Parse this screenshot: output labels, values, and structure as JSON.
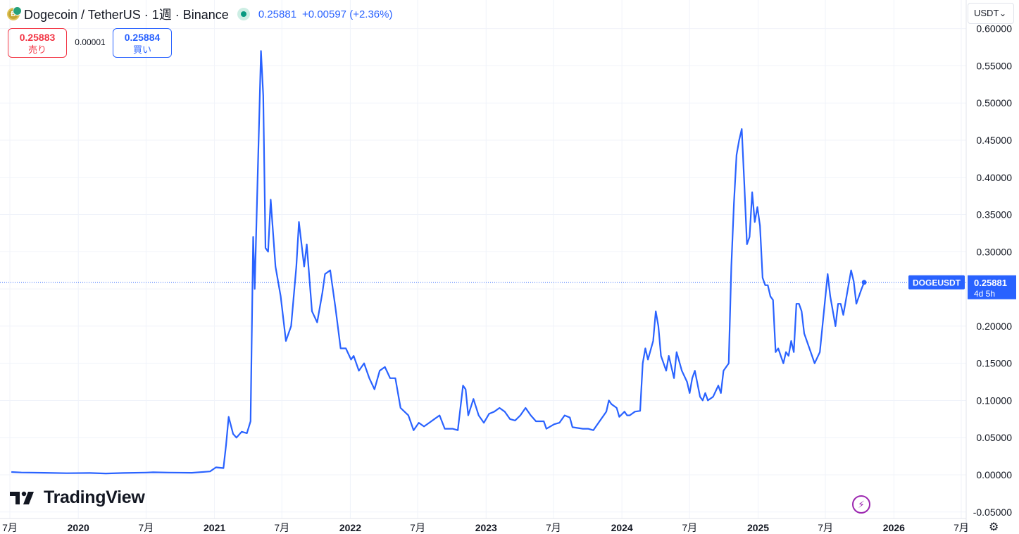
{
  "header": {
    "title": "Dogecoin / TetherUS · 1週 · Binance",
    "last_price": "0.25881",
    "change": "+0.00597 (+2.36%)"
  },
  "trade": {
    "sell_price": "0.25883",
    "sell_label": "売り",
    "spread": "0.00001",
    "buy_price": "0.25884",
    "buy_label": "買い"
  },
  "currency": "USDT",
  "logo_text": "TradingView",
  "price_label": {
    "symbol": "DOGEUSDT",
    "price": "0.25881",
    "countdown": "4d 5h"
  },
  "colors": {
    "line": "#2962ff",
    "sell": "#f23645",
    "buy": "#2962ff",
    "status": "#089981"
  },
  "chart_data": {
    "type": "line",
    "series": [
      {
        "name": "DOGEUSDT",
        "points": [
          [
            "2019-07-05",
            0.0038
          ],
          [
            "2019-08-01",
            0.0031
          ],
          [
            "2019-10-01",
            0.0027
          ],
          [
            "2019-12-01",
            0.0022
          ],
          [
            "2020-02-01",
            0.0025
          ],
          [
            "2020-03-15",
            0.0018
          ],
          [
            "2020-05-01",
            0.0025
          ],
          [
            "2020-07-01",
            0.003
          ],
          [
            "2020-07-20",
            0.0034
          ],
          [
            "2020-09-01",
            0.003
          ],
          [
            "2020-11-01",
            0.0027
          ],
          [
            "2020-12-20",
            0.0045
          ],
          [
            "2021-01-05",
            0.01
          ],
          [
            "2021-01-25",
            0.009
          ],
          [
            "2021-02-01",
            0.04
          ],
          [
            "2021-02-08",
            0.078
          ],
          [
            "2021-02-20",
            0.055
          ],
          [
            "2021-03-01",
            0.05
          ],
          [
            "2021-03-15",
            0.058
          ],
          [
            "2021-03-29",
            0.056
          ],
          [
            "2021-04-08",
            0.072
          ],
          [
            "2021-04-15",
            0.32
          ],
          [
            "2021-04-19",
            0.25
          ],
          [
            "2021-05-06",
            0.57
          ],
          [
            "2021-05-12",
            0.51
          ],
          [
            "2021-05-18",
            0.305
          ],
          [
            "2021-05-25",
            0.3
          ],
          [
            "2021-06-01",
            0.37
          ],
          [
            "2021-06-14",
            0.28
          ],
          [
            "2021-06-28",
            0.24
          ],
          [
            "2021-07-12",
            0.18
          ],
          [
            "2021-07-26",
            0.2
          ],
          [
            "2021-08-09",
            0.28
          ],
          [
            "2021-08-16",
            0.34
          ],
          [
            "2021-08-30",
            0.28
          ],
          [
            "2021-09-06",
            0.31
          ],
          [
            "2021-09-20",
            0.22
          ],
          [
            "2021-10-04",
            0.205
          ],
          [
            "2021-10-18",
            0.245
          ],
          [
            "2021-10-25",
            0.27
          ],
          [
            "2021-11-08",
            0.275
          ],
          [
            "2021-11-22",
            0.225
          ],
          [
            "2021-12-06",
            0.17
          ],
          [
            "2021-12-20",
            0.17
          ],
          [
            "2022-01-03",
            0.155
          ],
          [
            "2022-01-10",
            0.16
          ],
          [
            "2022-01-24",
            0.14
          ],
          [
            "2022-02-07",
            0.15
          ],
          [
            "2022-02-21",
            0.13
          ],
          [
            "2022-03-07",
            0.115
          ],
          [
            "2022-03-21",
            0.14
          ],
          [
            "2022-04-04",
            0.145
          ],
          [
            "2022-04-18",
            0.13
          ],
          [
            "2022-05-02",
            0.13
          ],
          [
            "2022-05-16",
            0.09
          ],
          [
            "2022-06-06",
            0.08
          ],
          [
            "2022-06-20",
            0.06
          ],
          [
            "2022-07-04",
            0.07
          ],
          [
            "2022-07-18",
            0.065
          ],
          [
            "2022-08-01",
            0.07
          ],
          [
            "2022-08-15",
            0.075
          ],
          [
            "2022-08-29",
            0.08
          ],
          [
            "2022-09-12",
            0.062
          ],
          [
            "2022-10-03",
            0.062
          ],
          [
            "2022-10-17",
            0.06
          ],
          [
            "2022-10-31",
            0.12
          ],
          [
            "2022-11-07",
            0.115
          ],
          [
            "2022-11-14",
            0.08
          ],
          [
            "2022-11-28",
            0.102
          ],
          [
            "2022-12-12",
            0.08
          ],
          [
            "2022-12-26",
            0.07
          ],
          [
            "2023-01-09",
            0.082
          ],
          [
            "2023-01-23",
            0.085
          ],
          [
            "2023-02-06",
            0.09
          ],
          [
            "2023-02-20",
            0.085
          ],
          [
            "2023-03-06",
            0.075
          ],
          [
            "2023-03-20",
            0.073
          ],
          [
            "2023-04-03",
            0.08
          ],
          [
            "2023-04-17",
            0.09
          ],
          [
            "2023-05-01",
            0.08
          ],
          [
            "2023-05-15",
            0.072
          ],
          [
            "2023-06-05",
            0.072
          ],
          [
            "2023-06-12",
            0.062
          ],
          [
            "2023-07-03",
            0.068
          ],
          [
            "2023-07-17",
            0.07
          ],
          [
            "2023-07-31",
            0.08
          ],
          [
            "2023-08-14",
            0.077
          ],
          [
            "2023-08-21",
            0.064
          ],
          [
            "2023-09-04",
            0.063
          ],
          [
            "2023-09-18",
            0.062
          ],
          [
            "2023-10-02",
            0.062
          ],
          [
            "2023-10-16",
            0.06
          ],
          [
            "2023-10-30",
            0.07
          ],
          [
            "2023-11-13",
            0.08
          ],
          [
            "2023-11-20",
            0.085
          ],
          [
            "2023-11-27",
            0.1
          ],
          [
            "2023-12-04",
            0.095
          ],
          [
            "2023-12-18",
            0.09
          ],
          [
            "2023-12-25",
            0.078
          ],
          [
            "2024-01-08",
            0.085
          ],
          [
            "2024-01-15",
            0.08
          ],
          [
            "2024-01-22",
            0.08
          ],
          [
            "2024-02-05",
            0.085
          ],
          [
            "2024-02-19",
            0.086
          ],
          [
            "2024-02-26",
            0.15
          ],
          [
            "2024-03-04",
            0.17
          ],
          [
            "2024-03-11",
            0.155
          ],
          [
            "2024-03-25",
            0.18
          ],
          [
            "2024-04-01",
            0.22
          ],
          [
            "2024-04-08",
            0.2
          ],
          [
            "2024-04-15",
            0.16
          ],
          [
            "2024-04-29",
            0.14
          ],
          [
            "2024-05-06",
            0.16
          ],
          [
            "2024-05-20",
            0.13
          ],
          [
            "2024-05-27",
            0.165
          ],
          [
            "2024-06-10",
            0.14
          ],
          [
            "2024-06-24",
            0.125
          ],
          [
            "2024-07-01",
            0.11
          ],
          [
            "2024-07-08",
            0.13
          ],
          [
            "2024-07-15",
            0.14
          ],
          [
            "2024-07-29",
            0.105
          ],
          [
            "2024-08-05",
            0.1
          ],
          [
            "2024-08-12",
            0.11
          ],
          [
            "2024-08-19",
            0.1
          ],
          [
            "2024-09-02",
            0.105
          ],
          [
            "2024-09-16",
            0.12
          ],
          [
            "2024-09-23",
            0.11
          ],
          [
            "2024-09-30",
            0.14
          ],
          [
            "2024-10-14",
            0.15
          ],
          [
            "2024-10-21",
            0.28
          ],
          [
            "2024-10-28",
            0.365
          ],
          [
            "2024-11-04",
            0.43
          ],
          [
            "2024-11-11",
            0.45
          ],
          [
            "2024-11-18",
            0.465
          ],
          [
            "2024-11-25",
            0.39
          ],
          [
            "2024-12-02",
            0.31
          ],
          [
            "2024-12-09",
            0.32
          ],
          [
            "2024-12-16",
            0.38
          ],
          [
            "2024-12-23",
            0.34
          ],
          [
            "2024-12-30",
            0.36
          ],
          [
            "2025-01-06",
            0.335
          ],
          [
            "2025-01-13",
            0.265
          ],
          [
            "2025-01-20",
            0.255
          ],
          [
            "2025-01-27",
            0.255
          ],
          [
            "2025-02-03",
            0.24
          ],
          [
            "2025-02-10",
            0.235
          ],
          [
            "2025-02-17",
            0.165
          ],
          [
            "2025-02-24",
            0.17
          ],
          [
            "2025-03-03",
            0.16
          ],
          [
            "2025-03-10",
            0.15
          ],
          [
            "2025-03-17",
            0.165
          ],
          [
            "2025-03-24",
            0.16
          ],
          [
            "2025-03-31",
            0.18
          ],
          [
            "2025-04-07",
            0.165
          ],
          [
            "2025-04-14",
            0.23
          ],
          [
            "2025-04-21",
            0.23
          ],
          [
            "2025-04-28",
            0.22
          ],
          [
            "2025-05-05",
            0.19
          ],
          [
            "2025-05-19",
            0.17
          ],
          [
            "2025-06-02",
            0.15
          ],
          [
            "2025-06-16",
            0.165
          ],
          [
            "2025-06-23",
            0.2
          ],
          [
            "2025-07-07",
            0.27
          ],
          [
            "2025-07-14",
            0.24
          ],
          [
            "2025-07-28",
            0.2
          ],
          [
            "2025-08-04",
            0.23
          ],
          [
            "2025-08-11",
            0.23
          ],
          [
            "2025-08-18",
            0.215
          ],
          [
            "2025-09-08",
            0.275
          ],
          [
            "2025-09-15",
            0.26
          ],
          [
            "2025-09-22",
            0.23
          ],
          [
            "2025-10-06",
            0.25
          ],
          [
            "2025-10-13",
            0.2588
          ]
        ]
      }
    ],
    "y_ticks": [
      "-0.05000",
      "0.00000",
      "0.05000",
      "0.10000",
      "0.15000",
      "0.20000",
      "0.25000",
      "0.30000",
      "0.35000",
      "0.40000",
      "0.45000",
      "0.50000",
      "0.55000",
      "0.60000"
    ],
    "ylim": [
      -0.055,
      0.61
    ],
    "x_ticks": [
      {
        "date": "2019-07-01",
        "label": "7月",
        "bold": false
      },
      {
        "date": "2020-01-01",
        "label": "2020",
        "bold": true
      },
      {
        "date": "2020-07-01",
        "label": "7月",
        "bold": false
      },
      {
        "date": "2021-01-01",
        "label": "2021",
        "bold": true
      },
      {
        "date": "2021-07-01",
        "label": "7月",
        "bold": false
      },
      {
        "date": "2022-01-01",
        "label": "2022",
        "bold": true
      },
      {
        "date": "2022-07-01",
        "label": "7月",
        "bold": false
      },
      {
        "date": "2023-01-01",
        "label": "2023",
        "bold": true
      },
      {
        "date": "2023-07-01",
        "label": "7月",
        "bold": false
      },
      {
        "date": "2024-01-01",
        "label": "2024",
        "bold": true
      },
      {
        "date": "2024-07-01",
        "label": "7月",
        "bold": false
      },
      {
        "date": "2025-01-01",
        "label": "2025",
        "bold": true
      },
      {
        "date": "2025-07-01",
        "label": "7月",
        "bold": false
      },
      {
        "date": "2026-01-01",
        "label": "2026",
        "bold": true
      },
      {
        "date": "2026-07-01",
        "label": "7月",
        "bold": false
      }
    ],
    "last_value": 0.25881,
    "grid": true,
    "y_axis_position": "right"
  }
}
